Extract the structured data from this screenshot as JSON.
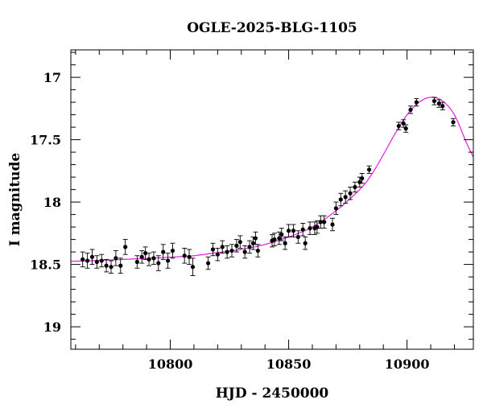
{
  "chart_data": {
    "type": "scatter",
    "title": "OGLE-2025-BLG-1105",
    "xlabel": "HJD - 2450000",
    "ylabel": "I magnitude",
    "xlim": [
      10758,
      10928
    ],
    "ylim": [
      19.18,
      16.78
    ],
    "y_inverted": true,
    "x_major_ticks": [
      10800,
      10850,
      10900
    ],
    "x_minor_step": 10,
    "y_major_ticks": [
      17,
      17.5,
      18,
      18.5,
      19
    ],
    "y_major_tick_labels": [
      "17",
      "17.5",
      "18",
      "18.5",
      "19"
    ],
    "x_major_tick_labels": [
      "10800",
      "10850",
      "10900"
    ],
    "y_minor_step": 0.1,
    "grid": false,
    "legend": "none",
    "colors": {
      "points": "#000000",
      "errorbars": "#000000",
      "model": "#e020e0",
      "frame": "#000000"
    },
    "series": [
      {
        "kind": "points_with_errorbars",
        "points": [
          [
            10763.0,
            18.46,
            0.06
          ],
          [
            10765.0,
            18.47,
            0.06
          ],
          [
            10767.0,
            18.44,
            0.06
          ],
          [
            10769.0,
            18.48,
            0.05
          ],
          [
            10771.0,
            18.47,
            0.05
          ],
          [
            10773.0,
            18.51,
            0.05
          ],
          [
            10775.0,
            18.52,
            0.05
          ],
          [
            10777.0,
            18.45,
            0.06
          ],
          [
            10779.0,
            18.51,
            0.06
          ],
          [
            10781.0,
            18.36,
            0.06
          ],
          [
            10786.0,
            18.48,
            0.05
          ],
          [
            10788.0,
            18.44,
            0.05
          ],
          [
            10789.5,
            18.41,
            0.05
          ],
          [
            10791.0,
            18.46,
            0.05
          ],
          [
            10793.0,
            18.45,
            0.05
          ],
          [
            10795.0,
            18.49,
            0.06
          ],
          [
            10797.0,
            18.4,
            0.06
          ],
          [
            10799.0,
            18.47,
            0.06
          ],
          [
            10801.0,
            18.39,
            0.06
          ],
          [
            10806.0,
            18.43,
            0.06
          ],
          [
            10808.0,
            18.44,
            0.06
          ],
          [
            10809.5,
            18.52,
            0.07
          ],
          [
            10816.0,
            18.49,
            0.05
          ],
          [
            10818.0,
            18.38,
            0.05
          ],
          [
            10820.0,
            18.42,
            0.05
          ],
          [
            10822.0,
            18.36,
            0.05
          ],
          [
            10824.0,
            18.4,
            0.05
          ],
          [
            10826.0,
            18.39,
            0.05
          ],
          [
            10828.0,
            18.35,
            0.05
          ],
          [
            10829.5,
            18.32,
            0.05
          ],
          [
            10831.5,
            18.4,
            0.05
          ],
          [
            10833.5,
            18.36,
            0.05
          ],
          [
            10835.0,
            18.33,
            0.05
          ],
          [
            10836.0,
            18.29,
            0.05
          ],
          [
            10837.0,
            18.39,
            0.05
          ],
          [
            10843.0,
            18.31,
            0.05
          ],
          [
            10844.0,
            18.3,
            0.05
          ],
          [
            10846.0,
            18.29,
            0.05
          ],
          [
            10847.0,
            18.26,
            0.05
          ],
          [
            10848.5,
            18.33,
            0.05
          ],
          [
            10850.0,
            18.23,
            0.05
          ],
          [
            10852.0,
            18.23,
            0.05
          ],
          [
            10854.0,
            18.28,
            0.05
          ],
          [
            10856.0,
            18.22,
            0.05
          ],
          [
            10857.0,
            18.33,
            0.05
          ],
          [
            10859.0,
            18.21,
            0.05
          ],
          [
            10861.0,
            18.21,
            0.05
          ],
          [
            10862.0,
            18.2,
            0.05
          ],
          [
            10863.5,
            18.16,
            0.05
          ],
          [
            10865.0,
            18.16,
            0.05
          ],
          [
            10868.5,
            18.18,
            0.05
          ],
          [
            10870.0,
            18.05,
            0.05
          ],
          [
            10872.0,
            17.98,
            0.05
          ],
          [
            10874.0,
            17.96,
            0.05
          ],
          [
            10876.0,
            17.93,
            0.05
          ],
          [
            10878.0,
            17.88,
            0.04
          ],
          [
            10880.0,
            17.84,
            0.04
          ],
          [
            10881.0,
            17.81,
            0.04
          ],
          [
            10884.0,
            17.74,
            0.03
          ],
          [
            10896.5,
            17.39,
            0.03
          ],
          [
            10898.5,
            17.37,
            0.03
          ],
          [
            10899.5,
            17.41,
            0.03
          ],
          [
            10901.5,
            17.26,
            0.03
          ],
          [
            10904.0,
            17.2,
            0.03
          ],
          [
            10911.5,
            17.19,
            0.03
          ],
          [
            10913.5,
            17.21,
            0.03
          ],
          [
            10915.0,
            17.23,
            0.03
          ],
          [
            10919.5,
            17.36,
            0.03
          ]
        ]
      },
      {
        "kind": "model_curve",
        "x": [
          10758,
          10770,
          10780,
          10790,
          10800,
          10810,
          10820,
          10830,
          10840,
          10850,
          10860,
          10870,
          10880,
          10885,
          10890,
          10895,
          10900,
          10905,
          10910,
          10915,
          10920,
          10925,
          10928
        ],
        "y": [
          18.475,
          18.468,
          18.46,
          18.452,
          18.442,
          18.43,
          18.405,
          18.38,
          18.34,
          18.28,
          18.2,
          18.07,
          17.9,
          17.78,
          17.62,
          17.45,
          17.3,
          17.2,
          17.16,
          17.19,
          17.3,
          17.52,
          17.64
        ]
      }
    ]
  }
}
